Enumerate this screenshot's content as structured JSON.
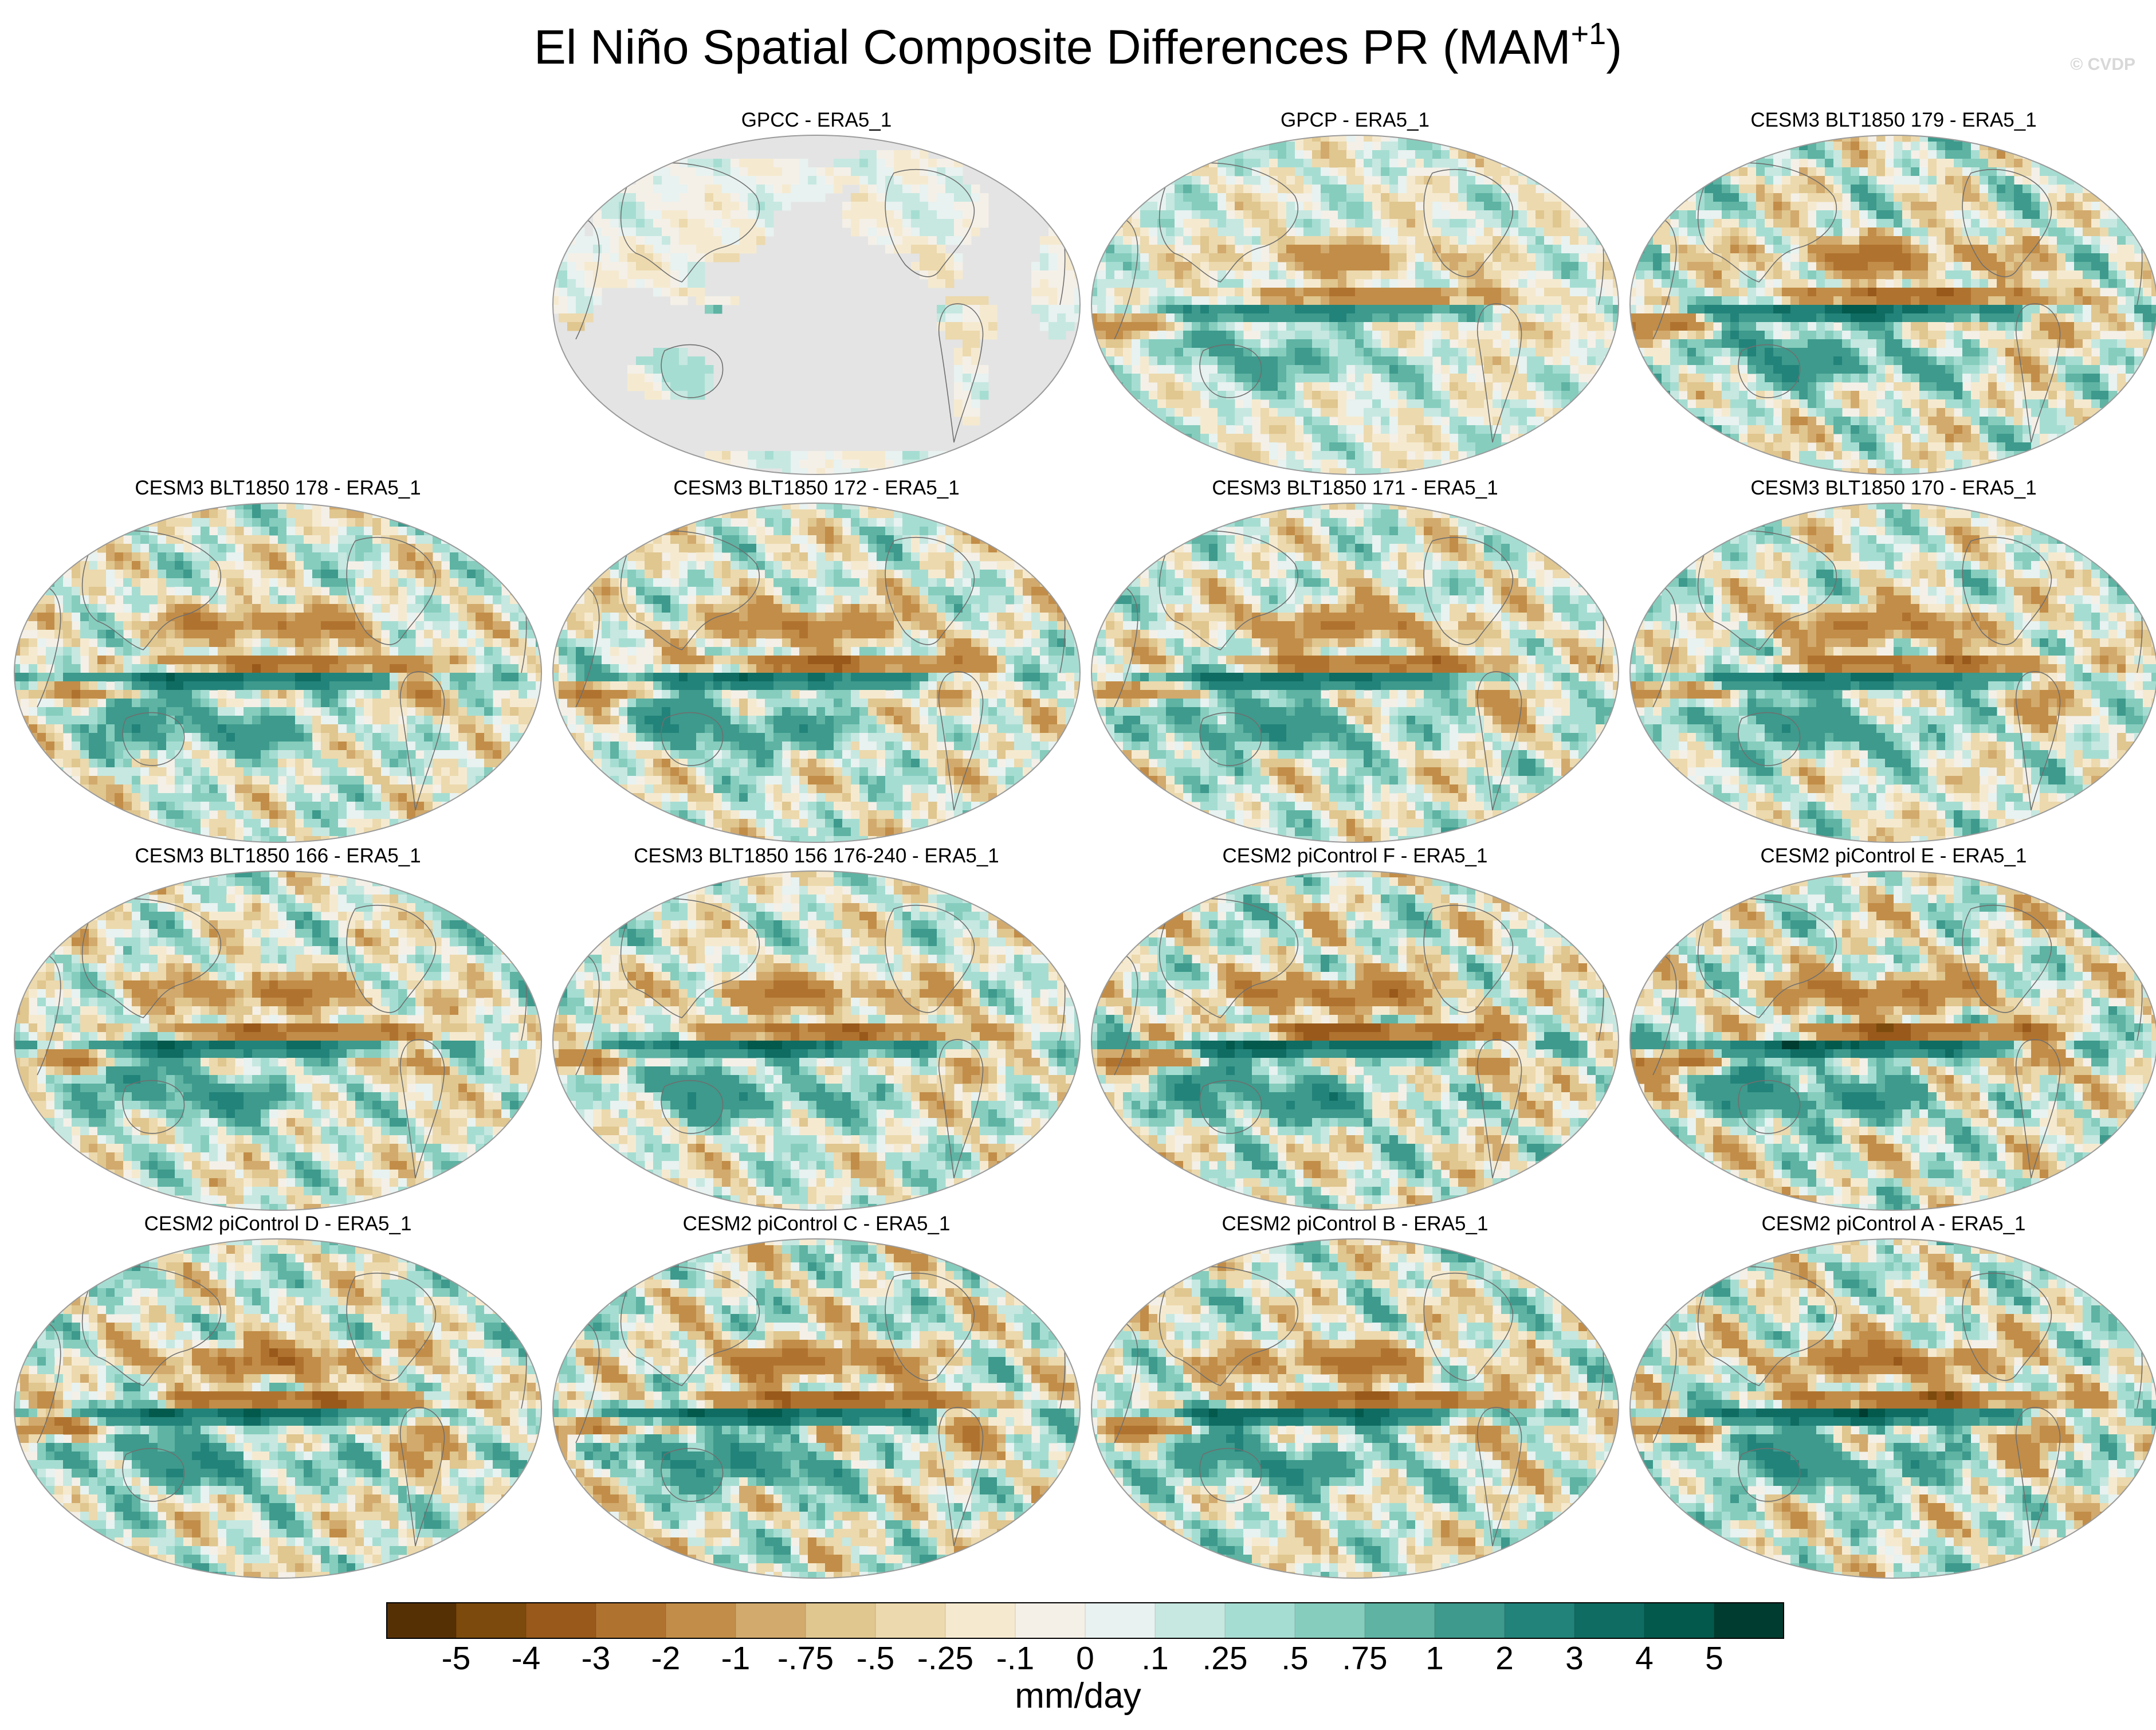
{
  "title": {
    "main": "El Niño Spatial Composite Differences PR (MAM",
    "superscript": "+1",
    "close": ")"
  },
  "watermark": "© CVDP",
  "panels": [
    {
      "label": "GPCC - ERA5_1",
      "land_only": true,
      "amp": 0.6,
      "seed": 3
    },
    {
      "label": "GPCP - ERA5_1",
      "land_only": false,
      "amp": 0.7,
      "seed": 7
    },
    {
      "label": "CESM3 BLT1850 179 - ERA5_1",
      "land_only": false,
      "amp": 1.1,
      "seed": 11
    },
    {
      "label": "CESM3 BLT1850 178 - ERA5_1",
      "land_only": false,
      "amp": 1.0,
      "seed": 13
    },
    {
      "label": "CESM3 BLT1850 172 - ERA5_1",
      "land_only": false,
      "amp": 1.0,
      "seed": 17
    },
    {
      "label": "CESM3 BLT1850 171 - ERA5_1",
      "land_only": false,
      "amp": 1.0,
      "seed": 19
    },
    {
      "label": "CESM3 BLT1850 170 - ERA5_1",
      "land_only": false,
      "amp": 1.0,
      "seed": 23
    },
    {
      "label": "CESM3 BLT1850 166 - ERA5_1",
      "land_only": false,
      "amp": 1.0,
      "seed": 29
    },
    {
      "label": "CESM3 BLT1850 156 176-240 - ERA5_1",
      "land_only": false,
      "amp": 1.0,
      "seed": 31
    },
    {
      "label": "CESM2 piControl F - ERA5_1",
      "land_only": false,
      "amp": 1.2,
      "seed": 37
    },
    {
      "label": "CESM2 piControl E - ERA5_1",
      "land_only": false,
      "amp": 1.2,
      "seed": 41
    },
    {
      "label": "CESM2 piControl D - ERA5_1",
      "land_only": false,
      "amp": 1.1,
      "seed": 43
    },
    {
      "label": "CESM2 piControl C - ERA5_1",
      "land_only": false,
      "amp": 1.2,
      "seed": 47
    },
    {
      "label": "CESM2 piControl B - ERA5_1",
      "land_only": false,
      "amp": 1.1,
      "seed": 53
    },
    {
      "label": "CESM2 piControl A - ERA5_1",
      "land_only": false,
      "amp": 1.2,
      "seed": 59
    }
  ],
  "colorbar": {
    "levels": [
      "-5",
      "-4",
      "-3",
      "-2",
      "-1",
      "-.75",
      "-.5",
      "-.25",
      "-.1",
      "0",
      ".1",
      ".25",
      ".5",
      ".75",
      "1",
      "2",
      "3",
      "4",
      "5"
    ],
    "colors": [
      "#563005",
      "#7b4a0c",
      "#98591a",
      "#b0732f",
      "#c28d48",
      "#d2aa6d",
      "#e0c68f",
      "#ecd9ad",
      "#f5ead0",
      "#f4f0e8",
      "#e8f2f0",
      "#c6e8e1",
      "#a6ddd2",
      "#86cdbe",
      "#5eb3a3",
      "#3d9a8c",
      "#22837a",
      "#0f6c62",
      "#02594c",
      "#003c30"
    ],
    "units": "mm/day"
  }
}
